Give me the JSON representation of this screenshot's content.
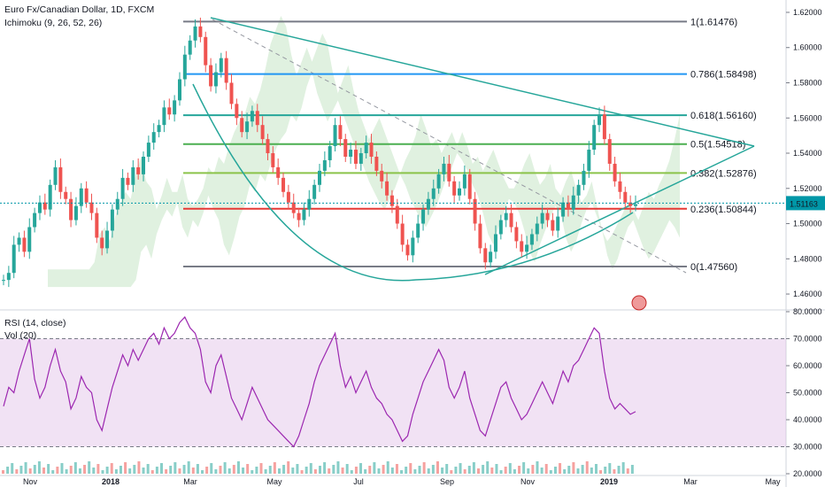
{
  "header": {
    "symbol_title": "Euro Fx/Canadian Dollar, 1D, FXCM",
    "ichimoku_label": "Ichimoku (9, 26, 52, 26)",
    "rsi_label": "RSI (14, close)",
    "vol_label": "Vol (20)"
  },
  "colors": {
    "up": "#26a69a",
    "down": "#ef5350",
    "rsi_line": "#9c27b0",
    "rsi_band": "#e1bee7",
    "cloud_up": "#a5d6a7",
    "cloud_down": "#ffcdd2",
    "pitchfork": "#26a69a",
    "price_line": "#0097a7"
  },
  "chart_data": [
    {
      "type": "candlestick",
      "panel": "price",
      "x_ticks": [
        "Nov",
        "2018",
        "Mar",
        "May",
        "Jul",
        "Sep",
        "Nov",
        "2019",
        "Mar",
        "May"
      ],
      "y_ticks": [
        "1.62000",
        "1.60000",
        "1.58000",
        "1.56000",
        "1.54000",
        "1.52000",
        "1.50000",
        "1.48000",
        "1.46000"
      ],
      "ylim": [
        1.455,
        1.623
      ],
      "current_price": "1.51163",
      "fib_levels": [
        {
          "label": "1(1.61476)",
          "value": 1.61476,
          "color": "#787b86"
        },
        {
          "label": "0.786(1.58498)",
          "value": 1.58498,
          "color": "#2196f3"
        },
        {
          "label": "0.618(1.56160)",
          "value": 1.5616,
          "color": "#26a69a"
        },
        {
          "label": "0.5(1.54518)",
          "value": 1.54518,
          "color": "#4caf50"
        },
        {
          "label": "0.382(1.52876)",
          "value": 1.52876,
          "color": "#8bc34a"
        },
        {
          "label": "0.236(1.50844)",
          "value": 1.50844,
          "color": "#e53935"
        },
        {
          "label": "0(1.47560)",
          "value": 1.4756,
          "color": "#787b86"
        }
      ],
      "close_path": [
        1.468,
        1.472,
        1.488,
        1.492,
        1.484,
        1.498,
        1.506,
        1.512,
        1.508,
        1.522,
        1.532,
        1.518,
        1.514,
        1.502,
        1.51,
        1.52,
        1.512,
        1.506,
        1.492,
        1.486,
        1.496,
        1.508,
        1.514,
        1.526,
        1.522,
        1.532,
        1.528,
        1.538,
        1.546,
        1.552,
        1.556,
        1.566,
        1.562,
        1.57,
        1.582,
        1.596,
        1.604,
        1.612,
        1.606,
        1.59,
        1.578,
        1.586,
        1.594,
        1.58,
        1.568,
        1.56,
        1.552,
        1.558,
        1.564,
        1.556,
        1.548,
        1.54,
        1.532,
        1.526,
        1.518,
        1.512,
        1.506,
        1.502,
        1.508,
        1.514,
        1.522,
        1.53,
        1.536,
        1.544,
        1.556,
        1.548,
        1.538,
        1.542,
        1.534,
        1.54,
        1.546,
        1.538,
        1.53,
        1.524,
        1.516,
        1.51,
        1.5,
        1.488,
        1.482,
        1.492,
        1.5,
        1.508,
        1.514,
        1.52,
        1.528,
        1.534,
        1.524,
        1.516,
        1.52,
        1.528,
        1.514,
        1.5,
        1.486,
        1.478,
        1.484,
        1.494,
        1.502,
        1.506,
        1.498,
        1.49,
        1.484,
        1.488,
        1.494,
        1.5,
        1.506,
        1.502,
        1.496,
        1.504,
        1.512,
        1.508,
        1.516,
        1.522,
        1.53,
        1.542,
        1.556,
        1.562,
        1.548,
        1.534,
        1.524,
        1.518,
        1.512,
        1.51,
        1.511
      ]
    },
    {
      "type": "line",
      "panel": "rsi",
      "series": [
        {
          "name": "RSI",
          "values": [
            45,
            52,
            50,
            58,
            64,
            70,
            55,
            48,
            52,
            60,
            66,
            58,
            54,
            44,
            48,
            56,
            52,
            50,
            40,
            36,
            44,
            52,
            58,
            64,
            60,
            66,
            62,
            66,
            70,
            72,
            68,
            74,
            70,
            72,
            76,
            78,
            74,
            72,
            66,
            54,
            50,
            60,
            64,
            56,
            48,
            44,
            40,
            46,
            52,
            48,
            44,
            40,
            38,
            36,
            34,
            32,
            30,
            34,
            40,
            46,
            54,
            60,
            64,
            68,
            72,
            60,
            52,
            56,
            50,
            54,
            58,
            52,
            48,
            46,
            42,
            40,
            36,
            32,
            34,
            42,
            48,
            54,
            58,
            62,
            66,
            62,
            52,
            48,
            52,
            58,
            48,
            42,
            36,
            34,
            40,
            46,
            52,
            54,
            48,
            44,
            40,
            42,
            46,
            50,
            54,
            50,
            46,
            52,
            58,
            54,
            60,
            62,
            66,
            70,
            74,
            72,
            58,
            48,
            44,
            46,
            44,
            42,
            43
          ]
        }
      ],
      "y_ticks": [
        "80.0000",
        "70.0000",
        "60.0000",
        "50.0000",
        "40.0000",
        "30.0000",
        "20.0000"
      ],
      "ylim": [
        20,
        80
      ],
      "band": [
        30,
        70
      ]
    }
  ]
}
